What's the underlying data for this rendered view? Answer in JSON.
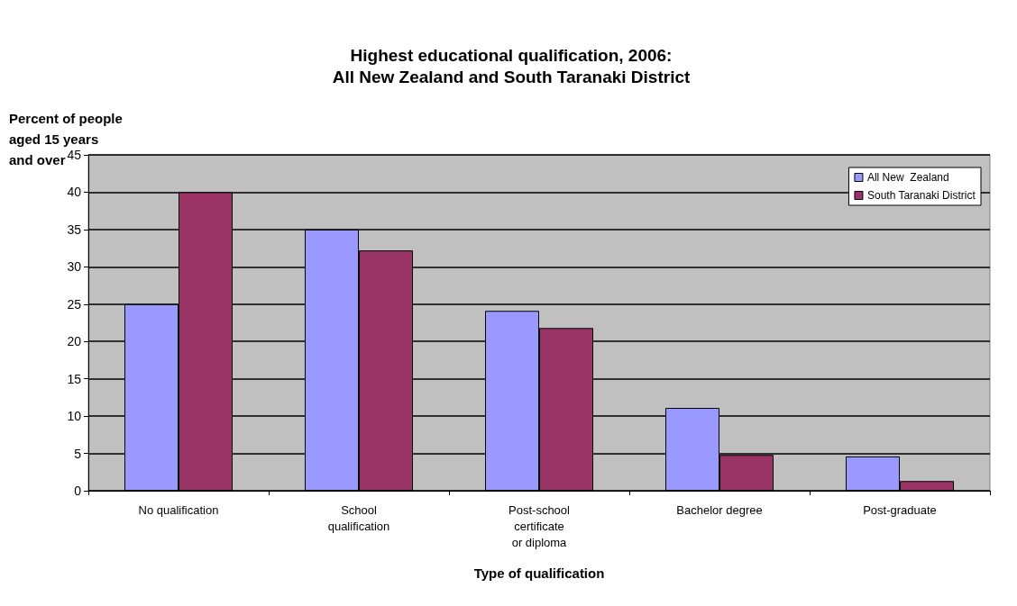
{
  "chart_data": {
    "type": "bar",
    "title": "Highest educational qualification, 2006:\nAll New Zealand and South Taranaki District",
    "xlabel": "Type of qualification",
    "ylabel": "Percent of people\naged 15 years\nand over",
    "categories": [
      "No qualification",
      "School\nqualification",
      "Post-school\ncertificate\nor diploma",
      "Bachelor degree",
      "Post-graduate"
    ],
    "series": [
      {
        "name": "All New  Zealand",
        "color": "#9999ff",
        "values": [
          25.0,
          35.0,
          24.1,
          11.1,
          4.6
        ]
      },
      {
        "name": "South Taranaki District",
        "color": "#993366",
        "values": [
          40.0,
          32.2,
          21.8,
          4.8,
          1.3
        ]
      }
    ],
    "ylim": [
      0,
      45
    ],
    "yticks": [
      0,
      5,
      10,
      15,
      20,
      25,
      30,
      35,
      40,
      45
    ],
    "grid": "y",
    "legend": "top right"
  }
}
